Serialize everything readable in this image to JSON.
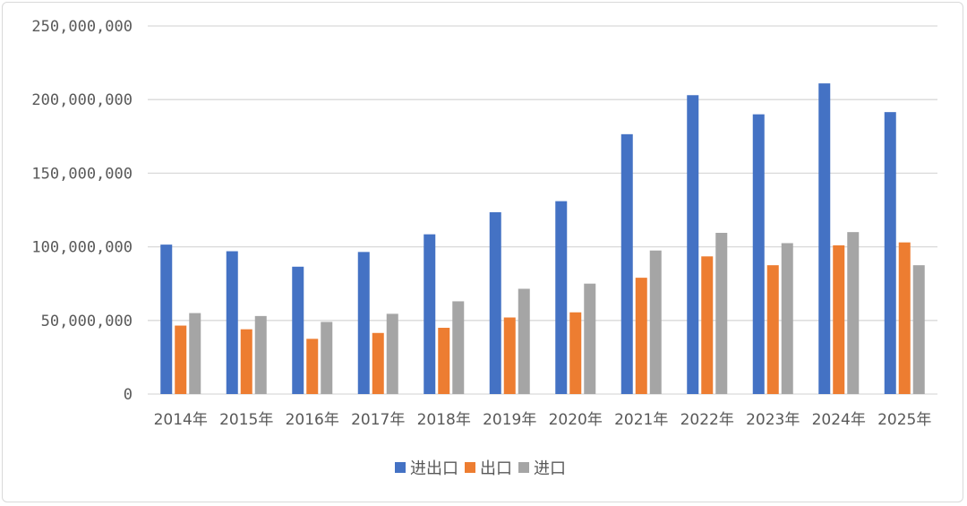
{
  "chart_data": {
    "type": "bar",
    "categories": [
      "2014年",
      "2015年",
      "2016年",
      "2017年",
      "2018年",
      "2019年",
      "2020年",
      "2021年",
      "2022年",
      "2023年",
      "2024年",
      "2025年"
    ],
    "series": [
      {
        "name": "进出口",
        "color": "#4472c4",
        "values": [
          101500000,
          97000000,
          86500000,
          96500000,
          108500000,
          123500000,
          131000000,
          176500000,
          203000000,
          190000000,
          211000000,
          191500000
        ]
      },
      {
        "name": "出口",
        "color": "#ed7d31",
        "values": [
          46500000,
          44000000,
          37500000,
          41500000,
          45000000,
          52000000,
          55500000,
          79000000,
          93500000,
          87500000,
          101000000,
          103000000
        ]
      },
      {
        "name": "进口",
        "color": "#a5a5a5",
        "values": [
          55000000,
          53000000,
          49000000,
          54500000,
          63000000,
          71500000,
          75000000,
          97500000,
          109500000,
          102500000,
          110000000,
          87500000
        ]
      }
    ],
    "y_ticks": [
      "0",
      "50,000,000",
      "100,000,000",
      "150,000,000",
      "200,000,000",
      "250,000,000"
    ],
    "ylim": [
      0,
      250000000
    ],
    "title": "",
    "xlabel": "",
    "ylabel": "",
    "grid": true,
    "legend_position": "bottom",
    "colors": {
      "gridline": "#d9d9d9",
      "text": "#595959",
      "background": "#ffffff"
    }
  }
}
